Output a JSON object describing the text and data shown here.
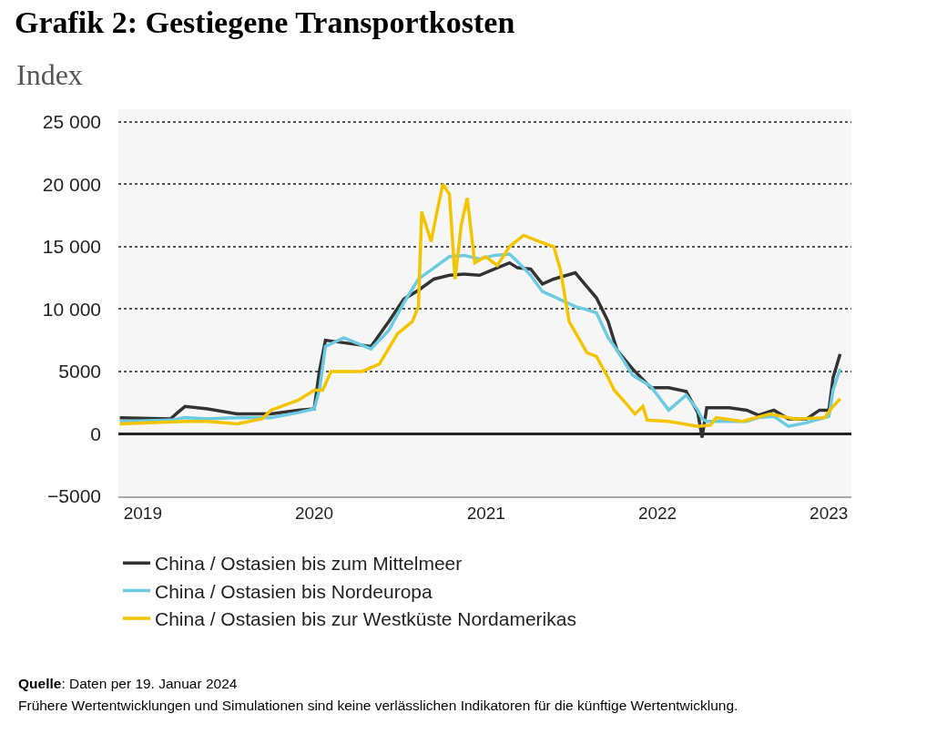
{
  "chart_data": {
    "type": "line",
    "title": "Grafik 2: Gestiegene Transportkosten",
    "subtitle": "Index",
    "x": [
      "2018-11-13",
      "2019-03-01",
      "2019-03-16",
      "2019-04-01",
      "2019-05-19",
      "2019-07-21",
      "2019-10-01",
      "2019-11-28",
      "2020-01-01",
      "2020-01-12",
      "2020-01-25",
      "2020-03-04",
      "2020-05-01",
      "2020-06-08",
      "2020-07-10",
      "2020-08-10",
      "2020-09-12",
      "2020-10-15",
      "2020-11-15",
      "2020-12-18",
      "2021-01-19",
      "2021-02-20",
      "2021-03-09",
      "2021-04-06",
      "2021-05-01",
      "2021-05-25",
      "2021-07-10",
      "2021-07-30",
      "2021-08-24",
      "2021-09-18",
      "2021-10-07",
      "2021-11-09",
      "2021-12-18",
      "2022-01-25",
      "2022-03-03",
      "2022-03-28",
      "2022-04-06",
      "2022-04-16",
      "2022-06-03",
      "2022-07-10",
      "2022-08-04",
      "2022-09-06",
      "2022-10-07",
      "2022-11-15",
      "2022-12-12",
      "2023-01-01",
      "2023-01-10",
      "2023-01-25"
    ],
    "series": [
      {
        "name": "China / Ostasien bis zum Mittelmeer",
        "color": "#333333",
        "values": [
          1300,
          1200,
          1700,
          2200,
          2000,
          1600,
          1600,
          1900,
          2000,
          5000,
          7500,
          7300,
          7000,
          9000,
          10800,
          11500,
          12400,
          12700,
          12800,
          12700,
          13200,
          13700,
          13300,
          13200,
          12000,
          12400,
          12900,
          12000,
          10900,
          9000,
          6700,
          5200,
          3700,
          3700,
          3400,
          1700,
          -300,
          2100,
          2100,
          1900,
          1500,
          1900,
          1200,
          1200,
          1900,
          1900,
          4500,
          6400
        ]
      },
      {
        "name": "China / Ostasien bis Nordeuropa",
        "color": "#6ccbe0",
        "values": [
          1000,
          1100,
          1200,
          1300,
          1200,
          1300,
          1300,
          1700,
          2000,
          3500,
          7000,
          7700,
          6800,
          8300,
          10500,
          12400,
          13300,
          14200,
          14300,
          14000,
          14300,
          14400,
          13800,
          12700,
          11400,
          11000,
          10200,
          10000,
          9700,
          7700,
          6700,
          4700,
          3800,
          1900,
          3100,
          1900,
          1200,
          1000,
          1000,
          1000,
          1300,
          1400,
          600,
          900,
          1200,
          1400,
          3500,
          5200
        ]
      },
      {
        "name": "China / Ostasien bis zur Westküste Nordamerikas",
        "color": "#f5c400",
        "x": [
          "2018-11-13",
          "2019-04-01",
          "2019-05-19",
          "2019-07-21",
          "2019-09-12",
          "2019-10-01",
          "2019-11-28",
          "2020-01-01",
          "2020-01-19",
          "2020-02-06",
          "2020-03-04",
          "2020-04-12",
          "2020-05-19",
          "2020-06-26",
          "2020-07-28",
          "2020-08-10",
          "2020-08-17",
          "2020-09-06",
          "2020-09-18",
          "2020-10-01",
          "2020-10-15",
          "2020-10-27",
          "2020-11-09",
          "2020-11-22",
          "2020-12-08",
          "2020-12-31",
          "2021-01-25",
          "2021-02-20",
          "2021-03-22",
          "2021-04-25",
          "2021-05-25",
          "2021-06-08",
          "2021-06-27",
          "2021-08-04",
          "2021-08-24",
          "2021-09-18",
          "2021-10-01",
          "2021-10-20",
          "2021-11-14",
          "2021-12-01",
          "2021-12-10",
          "2022-01-25",
          "2022-03-28",
          "2022-04-24",
          "2022-05-06",
          "2022-07-01",
          "2022-08-29",
          "2022-10-20",
          "2022-12-23",
          "2023-01-10",
          "2023-01-25"
        ],
        "values": [
          800,
          1000,
          1000,
          800,
          1200,
          1900,
          2700,
          3500,
          3500,
          5000,
          5000,
          5000,
          5600,
          8000,
          9000,
          10200,
          17800,
          15400,
          17700,
          20000,
          19200,
          12400,
          16700,
          18900,
          13700,
          14200,
          13500,
          15000,
          15900,
          15400,
          15000,
          13200,
          9000,
          6500,
          6200,
          4500,
          3500,
          2700,
          1600,
          2200,
          1100,
          1000,
          600,
          700,
          1300,
          1000,
          1600,
          1200,
          1300,
          2200,
          2800
        ]
      }
    ],
    "xlim": [
      "2018-11-10",
      "2023-02-18"
    ],
    "xticks": [
      {
        "value": "2019-01-01",
        "label": "2019"
      },
      {
        "value": "2020-01-01",
        "label": "2020"
      },
      {
        "value": "2021-01-01",
        "label": "2021"
      },
      {
        "value": "2022-01-01",
        "label": "2022"
      },
      {
        "value": "2023-01-01",
        "label": "2023"
      }
    ],
    "ylim": [
      -5000,
      26000
    ],
    "yticks": [
      {
        "value": -5000,
        "label": "−5000"
      },
      0,
      5000,
      {
        "value": 10000,
        "label": "10 000"
      },
      {
        "value": 15000,
        "label": "15 000"
      },
      {
        "value": 20000,
        "label": "20 000"
      },
      {
        "value": 25000,
        "label": "25 000"
      }
    ],
    "grid": "y",
    "legend": "bottom",
    "marker": "none",
    "line_style": "solid",
    "annotations": [
      "Quelle: Daten per 19. Januar 2024",
      "Frühere Wertentwicklungen und Simulationen sind keine verlässlichen Indikatoren für die künftige Wertentwicklung."
    ]
  }
}
